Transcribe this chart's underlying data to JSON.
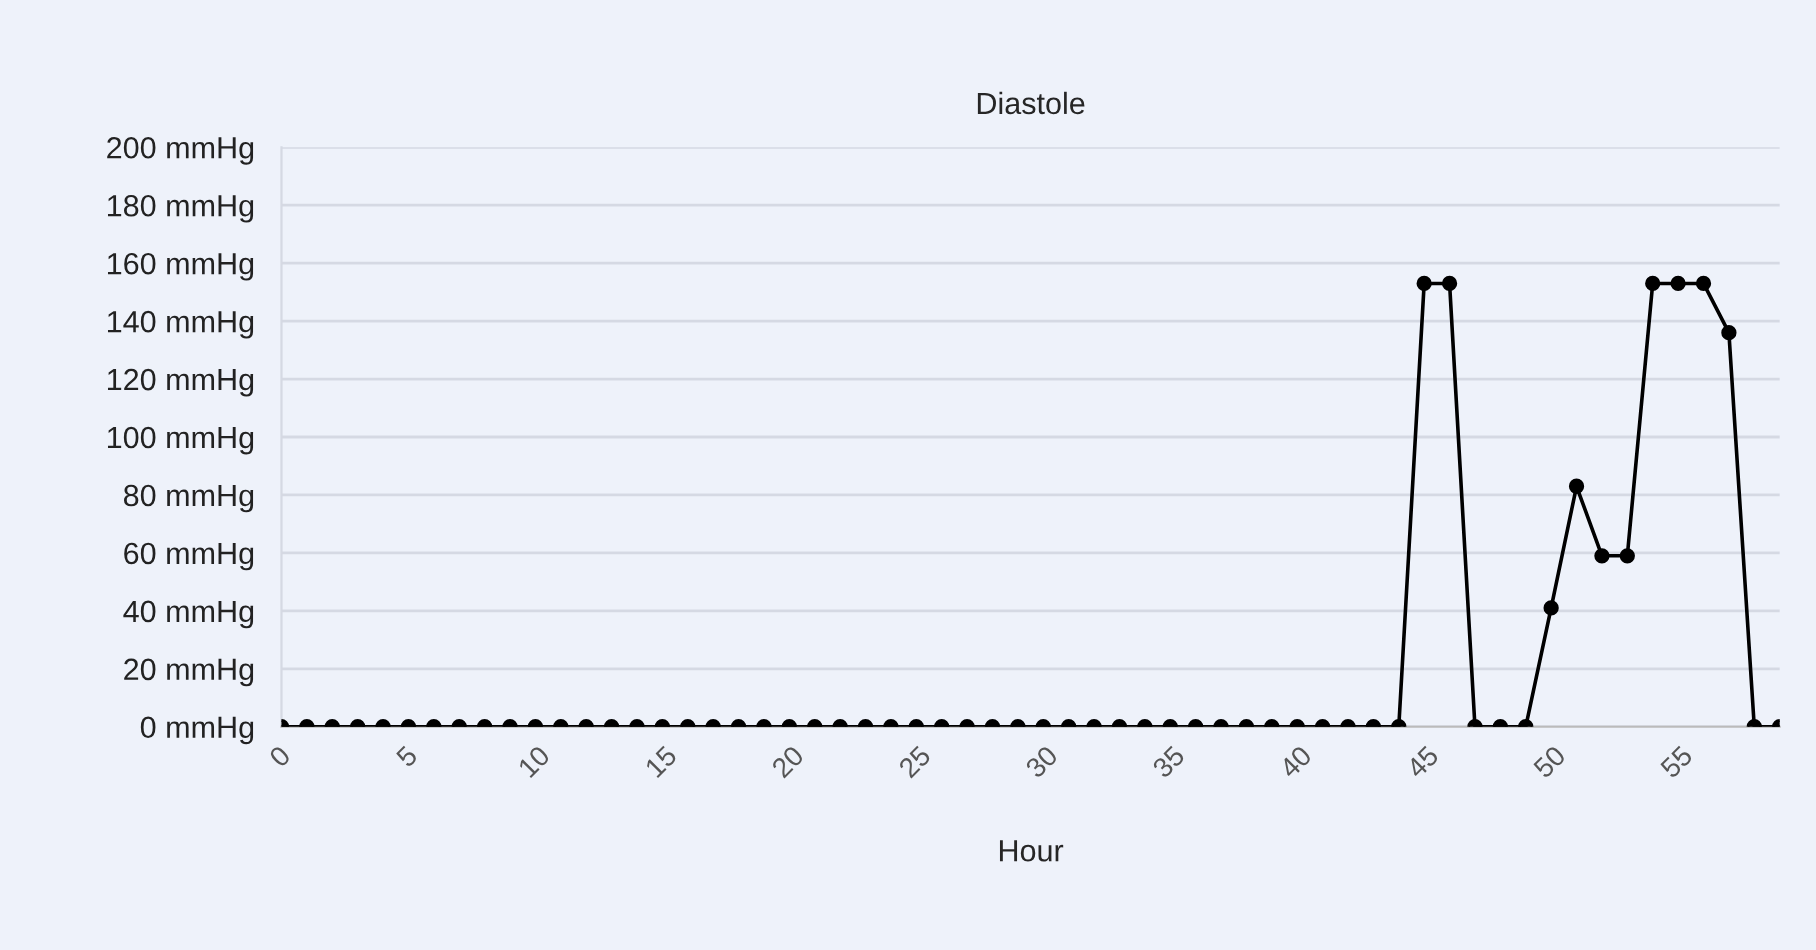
{
  "chart_data": {
    "type": "line",
    "title": "Diastole",
    "xlabel": "Hour",
    "x": [
      0,
      1,
      2,
      3,
      4,
      5,
      6,
      7,
      8,
      9,
      10,
      11,
      12,
      13,
      14,
      15,
      16,
      17,
      18,
      19,
      20,
      21,
      22,
      23,
      24,
      25,
      26,
      27,
      28,
      29,
      30,
      31,
      32,
      33,
      34,
      35,
      36,
      37,
      38,
      39,
      40,
      41,
      42,
      43,
      44,
      45,
      46,
      47,
      48,
      49,
      50,
      51,
      52,
      53,
      54,
      55,
      56,
      57,
      58,
      59
    ],
    "series": [
      {
        "color": "#000000",
        "values": [
          0,
          0,
          0,
          0,
          0,
          0,
          0,
          0,
          0,
          0,
          0,
          0,
          0,
          0,
          0,
          0,
          0,
          0,
          0,
          0,
          0,
          0,
          0,
          0,
          0,
          0,
          0,
          0,
          0,
          0,
          0,
          0,
          0,
          0,
          0,
          0,
          0,
          0,
          0,
          0,
          0,
          0,
          0,
          0,
          0,
          153,
          153,
          0,
          0,
          0,
          41,
          83,
          59,
          59,
          153,
          153,
          153,
          136,
          0,
          0
        ]
      }
    ],
    "xlim": [
      0,
      59
    ],
    "xticks": [
      0,
      5,
      10,
      15,
      20,
      25,
      30,
      35,
      40,
      45,
      50,
      55
    ],
    "ylim": [
      0,
      200
    ],
    "yticks": [
      {
        "value": 0,
        "label": "0 mmHg"
      },
      {
        "value": 20,
        "label": "20 mmHg"
      },
      {
        "value": 40,
        "label": "40 mmHg"
      },
      {
        "value": 60,
        "label": "60 mmHg"
      },
      {
        "value": 80,
        "label": "80 mmHg"
      },
      {
        "value": 100,
        "label": "100 mmHg"
      },
      {
        "value": 120,
        "label": "120 mmHg"
      },
      {
        "value": 140,
        "label": "140 mmHg"
      },
      {
        "value": 160,
        "label": "160 mmHg"
      },
      {
        "value": 180,
        "label": "180 mmHg"
      },
      {
        "value": 200,
        "label": "200 mmHg"
      }
    ],
    "grid": "y",
    "marker": "circle",
    "line_style": "solid"
  }
}
